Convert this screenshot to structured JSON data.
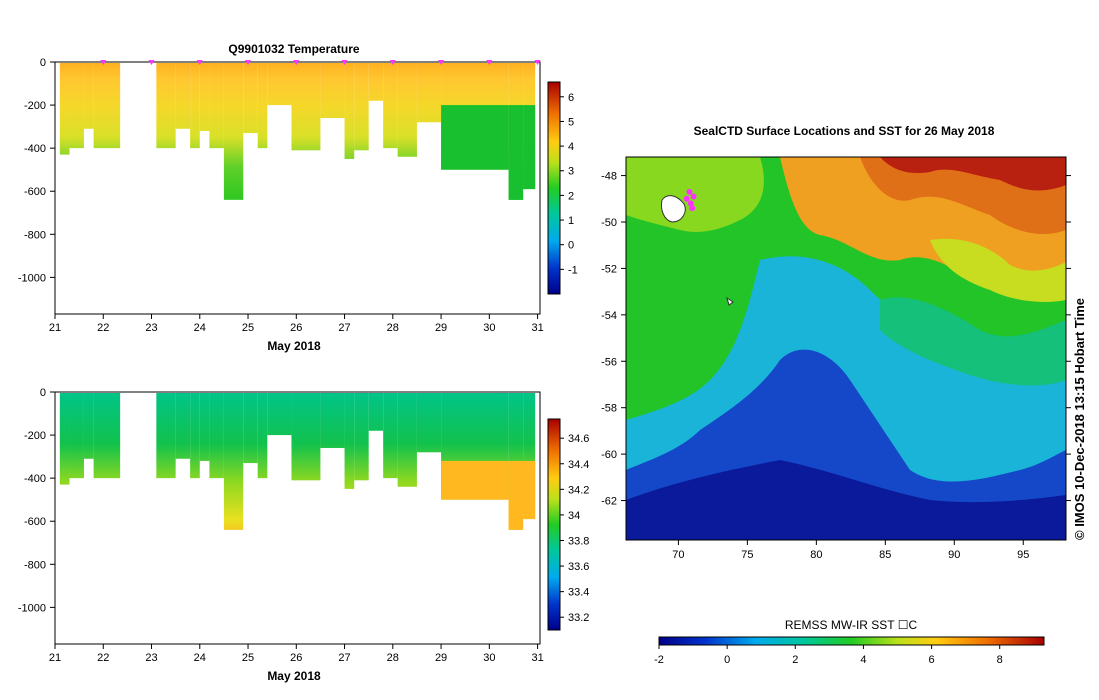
{
  "chart_data": [
    {
      "id": "temperature",
      "type": "heatmap",
      "title": "Q9901032  Temperature",
      "xlabel": "May 2018",
      "xticks": [
        "21",
        "22",
        "23",
        "24",
        "25",
        "26",
        "27",
        "28",
        "29",
        "30",
        "31"
      ],
      "xlim": [
        21,
        31.05
      ],
      "ylim": [
        -1170,
        0
      ],
      "yticks": [
        "0",
        "-200",
        "-400",
        "-600",
        "-800",
        "-1000"
      ],
      "colorbar": {
        "vmin": -2,
        "vmax": 6.6,
        "ticks": [
          "6",
          "5",
          "4",
          "3",
          "2",
          "1",
          "0",
          "-1"
        ]
      },
      "surfacings": [
        22,
        23,
        24,
        25,
        26,
        27,
        28,
        29,
        30,
        31
      ],
      "profiles": [
        {
          "t": 21.1,
          "d": 430
        },
        {
          "t": 21.3,
          "d": 400
        },
        {
          "t": 21.6,
          "d": 310
        },
        {
          "t": 21.8,
          "d": 400
        },
        {
          "t": 23.1,
          "d": 400
        },
        {
          "t": 23.5,
          "d": 310
        },
        {
          "t": 23.8,
          "d": 400
        },
        {
          "t": 24.0,
          "d": 320
        },
        {
          "t": 24.2,
          "d": 400
        },
        {
          "t": 24.5,
          "d": 640
        },
        {
          "t": 24.9,
          "d": 330
        },
        {
          "t": 25.2,
          "d": 400
        },
        {
          "t": 25.4,
          "d": 200
        },
        {
          "t": 25.9,
          "d": 410
        },
        {
          "t": 26.5,
          "d": 260
        },
        {
          "t": 27.0,
          "d": 450
        },
        {
          "t": 27.2,
          "d": 410
        },
        {
          "t": 27.5,
          "d": 180
        },
        {
          "t": 27.8,
          "d": 400
        },
        {
          "t": 28.1,
          "d": 440
        },
        {
          "t": 28.5,
          "d": 280
        },
        {
          "t": 29.0,
          "d": 500
        },
        {
          "t": 30.4,
          "d": 640
        },
        {
          "t": 30.7,
          "d": 590
        }
      ],
      "gaps": [
        [
          22.35,
          23.05
        ]
      ],
      "end": 30.95
    },
    {
      "id": "salinity",
      "type": "heatmap",
      "title": "",
      "xlabel": "May 2018",
      "xticks": [
        "21",
        "22",
        "23",
        "24",
        "25",
        "26",
        "27",
        "28",
        "29",
        "30",
        "31"
      ],
      "xlim": [
        21,
        31.05
      ],
      "ylim": [
        -1170,
        0
      ],
      "yticks": [
        "0",
        "-200",
        "-400",
        "-600",
        "-800",
        "-1000"
      ],
      "colorbar": {
        "vmin": 33.1,
        "vmax": 34.75,
        "ticks": [
          "34.6",
          "34.4",
          "34.2",
          "34",
          "33.8",
          "33.6",
          "33.4",
          "33.2"
        ]
      }
    },
    {
      "id": "sst_map",
      "type": "heatmap",
      "title": "SealCTD Surface Locations and SST for 26 May 2018",
      "xlim": [
        66.2,
        98.1
      ],
      "ylim": [
        -63.7,
        -47.2
      ],
      "xticks": [
        "70",
        "75",
        "80",
        "85",
        "90",
        "95"
      ],
      "yticks": [
        "-48",
        "-50",
        "-52",
        "-54",
        "-56",
        "-58",
        "-60",
        "-62"
      ],
      "colorbar": {
        "label": "REMSS MW-IR SST ☐C",
        "vmin": -2,
        "vmax": 9.3,
        "ticks": [
          "-2",
          "0",
          "2",
          "4",
          "6",
          "8"
        ]
      },
      "seal_locations": [
        {
          "lon": 70.6,
          "lat": -49.0
        },
        {
          "lon": 70.9,
          "lat": -49.2
        },
        {
          "lon": 71.1,
          "lat": -48.9
        },
        {
          "lon": 70.8,
          "lat": -48.7
        },
        {
          "lon": 71.0,
          "lat": -49.4
        }
      ],
      "copyright": "©  IMOS 10-Dec-2018 13:15 Hobart Time"
    }
  ],
  "colors": {
    "frame": "#000000",
    "seal_marker": "#ff33ff"
  }
}
